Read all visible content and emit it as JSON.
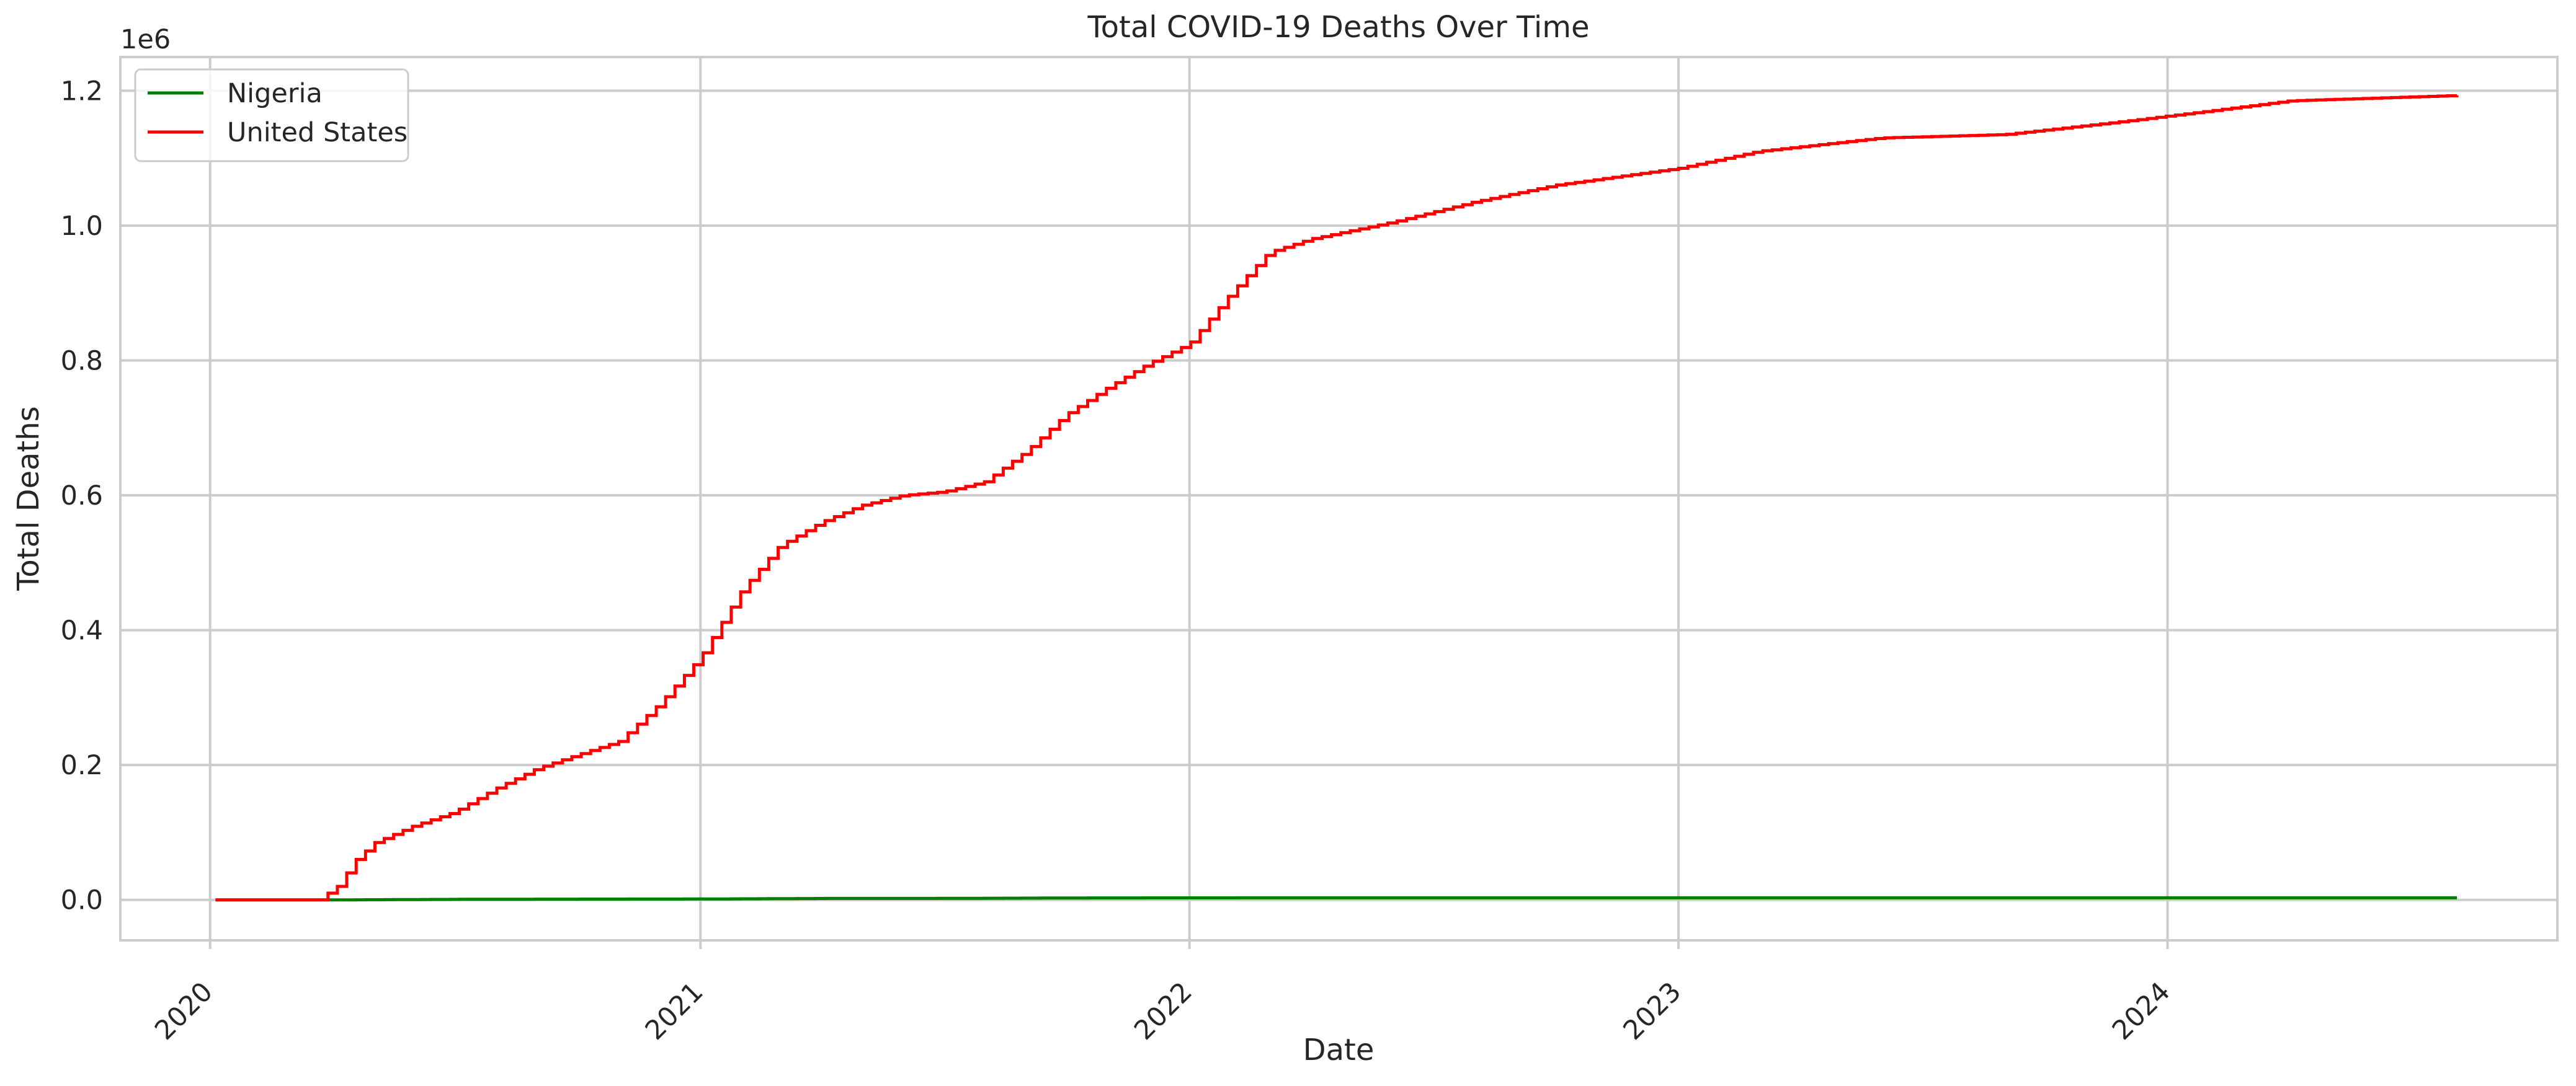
{
  "chart_data": {
    "type": "line",
    "title": "Total COVID-19 Deaths Over Time",
    "xlabel": "Date",
    "ylabel": "Total Deaths",
    "y_multiplier_label": "1e6",
    "x_axis_type": "date",
    "xlim": [
      "2019-10-26",
      "2024-10-18"
    ],
    "ylim": [
      -0.06,
      1.25
    ],
    "y_units": "millions",
    "x_ticks": [
      {
        "date": "2020-01-01",
        "label": "2020"
      },
      {
        "date": "2021-01-01",
        "label": "2021"
      },
      {
        "date": "2022-01-01",
        "label": "2022"
      },
      {
        "date": "2023-01-01",
        "label": "2023"
      },
      {
        "date": "2024-01-01",
        "label": "2024"
      }
    ],
    "y_ticks": [
      {
        "value": 0.0,
        "label": "0.0"
      },
      {
        "value": 0.2,
        "label": "0.2"
      },
      {
        "value": 0.4,
        "label": "0.4"
      },
      {
        "value": 0.6,
        "label": "0.6"
      },
      {
        "value": 0.8,
        "label": "0.8"
      },
      {
        "value": 1.0,
        "label": "1.0"
      },
      {
        "value": 1.2,
        "label": "1.2"
      }
    ],
    "grid": true,
    "legend_position": "top-left",
    "series": [
      {
        "name": "Nigeria",
        "color": "#008000",
        "step": true,
        "points": [
          [
            "2020-01-05",
            0.0
          ],
          [
            "2020-04-05",
            0.0
          ],
          [
            "2020-07-01",
            0.0008
          ],
          [
            "2020-10-01",
            0.0011
          ],
          [
            "2021-01-01",
            0.0013
          ],
          [
            "2021-04-01",
            0.0021
          ],
          [
            "2021-07-01",
            0.0022
          ],
          [
            "2021-10-01",
            0.0028
          ],
          [
            "2022-01-01",
            0.003
          ],
          [
            "2022-07-01",
            0.0031
          ],
          [
            "2023-01-01",
            0.0031
          ],
          [
            "2024-01-01",
            0.0031
          ],
          [
            "2024-08-04",
            0.0031
          ]
        ]
      },
      {
        "name": "United States",
        "color": "#ff0000",
        "step": true,
        "points": [
          [
            "2020-01-05",
            0.0
          ],
          [
            "2020-03-22",
            0.0
          ],
          [
            "2020-04-05",
            0.02
          ],
          [
            "2020-04-19",
            0.06
          ],
          [
            "2020-05-03",
            0.085
          ],
          [
            "2020-06-01",
            0.11
          ],
          [
            "2020-07-01",
            0.13
          ],
          [
            "2020-08-01",
            0.165
          ],
          [
            "2020-09-01",
            0.195
          ],
          [
            "2020-10-01",
            0.215
          ],
          [
            "2020-11-01",
            0.235
          ],
          [
            "2020-12-01",
            0.29
          ],
          [
            "2021-01-01",
            0.36
          ],
          [
            "2021-02-01",
            0.46
          ],
          [
            "2021-03-01",
            0.525
          ],
          [
            "2021-04-01",
            0.56
          ],
          [
            "2021-05-01",
            0.585
          ],
          [
            "2021-06-01",
            0.6
          ],
          [
            "2021-07-01",
            0.605
          ],
          [
            "2021-08-01",
            0.62
          ],
          [
            "2021-09-01",
            0.665
          ],
          [
            "2021-10-01",
            0.72
          ],
          [
            "2021-11-01",
            0.76
          ],
          [
            "2021-12-01",
            0.795
          ],
          [
            "2022-01-01",
            0.825
          ],
          [
            "2022-02-01",
            0.9
          ],
          [
            "2022-03-01",
            0.96
          ],
          [
            "2022-04-01",
            0.98
          ],
          [
            "2022-06-01",
            1.005
          ],
          [
            "2022-08-01",
            1.035
          ],
          [
            "2022-10-01",
            1.06
          ],
          [
            "2023-01-01",
            1.085
          ],
          [
            "2023-03-01",
            1.11
          ],
          [
            "2023-06-01",
            1.13
          ],
          [
            "2023-09-01",
            1.135
          ],
          [
            "2023-12-01",
            1.155
          ],
          [
            "2024-02-01",
            1.17
          ],
          [
            "2024-04-01",
            1.185
          ],
          [
            "2024-08-04",
            1.193
          ]
        ]
      }
    ]
  }
}
